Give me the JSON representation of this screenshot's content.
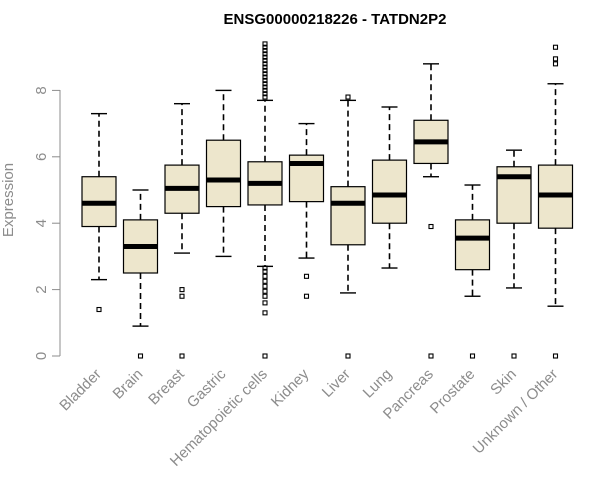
{
  "chart_data": {
    "type": "boxplot",
    "title": "ENSG00000218226 - TATDN2P2",
    "xlabel": "",
    "ylabel": "Expression",
    "ylim": [
      0,
      9.6
    ],
    "yticks": [
      0,
      2,
      4,
      6,
      8
    ],
    "box_fill": "#ede6cc",
    "categories": [
      "Bladder",
      "Brain",
      "Breast",
      "Gastric",
      "Hematopoietic cells",
      "Kidney",
      "Liver",
      "Lung",
      "Pancreas",
      "Prostate",
      "Skin",
      "Unknown / Other"
    ],
    "boxes": [
      {
        "name": "Bladder",
        "whislo": 2.3,
        "q1": 3.9,
        "med": 4.6,
        "q3": 5.4,
        "whishi": 7.3,
        "fliers": [
          1.4
        ]
      },
      {
        "name": "Brain",
        "whislo": 0.9,
        "q1": 2.5,
        "med": 3.3,
        "q3": 4.1,
        "whishi": 5.0,
        "fliers": [
          0
        ]
      },
      {
        "name": "Breast",
        "whislo": 3.1,
        "q1": 4.3,
        "med": 5.05,
        "q3": 5.75,
        "whishi": 7.6,
        "fliers": [
          2.0,
          1.8,
          0
        ]
      },
      {
        "name": "Gastric",
        "whislo": 3.0,
        "q1": 4.5,
        "med": 5.3,
        "q3": 6.5,
        "whishi": 8.0,
        "fliers": []
      },
      {
        "name": "Hematopoietic cells",
        "whislo": 2.7,
        "q1": 4.55,
        "med": 5.2,
        "q3": 5.85,
        "whishi": 7.7,
        "fliers": [
          0,
          1.3,
          1.6,
          1.8,
          1.95,
          2.1,
          2.25,
          2.4,
          2.55,
          2.65,
          7.8,
          7.9,
          8.0,
          8.1,
          8.2,
          8.3,
          8.4,
          8.5,
          8.6,
          8.7,
          8.8,
          8.9,
          9.0,
          9.1,
          9.2,
          9.3,
          9.4
        ]
      },
      {
        "name": "Kidney",
        "whislo": 2.95,
        "q1": 4.65,
        "med": 5.8,
        "q3": 6.05,
        "whishi": 7.0,
        "fliers": [
          2.4,
          1.8
        ]
      },
      {
        "name": "Liver",
        "whislo": 1.9,
        "q1": 3.35,
        "med": 4.6,
        "q3": 5.1,
        "whishi": 7.7,
        "fliers": [
          7.8,
          0
        ]
      },
      {
        "name": "Lung",
        "whislo": 2.65,
        "q1": 4.0,
        "med": 4.85,
        "q3": 5.9,
        "whishi": 7.5,
        "fliers": []
      },
      {
        "name": "Pancreas",
        "whislo": 5.4,
        "q1": 5.8,
        "med": 6.45,
        "q3": 7.1,
        "whishi": 8.8,
        "fliers": [
          3.9,
          0
        ]
      },
      {
        "name": "Prostate",
        "whislo": 1.8,
        "q1": 2.6,
        "med": 3.55,
        "q3": 4.1,
        "whishi": 5.15,
        "fliers": [
          0
        ]
      },
      {
        "name": "Skin",
        "whislo": 2.05,
        "q1": 4.0,
        "med": 5.4,
        "q3": 5.7,
        "whishi": 6.2,
        "fliers": [
          0
        ]
      },
      {
        "name": "Unknown / Other",
        "whislo": 1.5,
        "q1": 3.85,
        "med": 4.85,
        "q3": 5.75,
        "whishi": 8.2,
        "fliers": [
          0,
          8.8,
          8.95,
          9.3
        ]
      }
    ]
  }
}
